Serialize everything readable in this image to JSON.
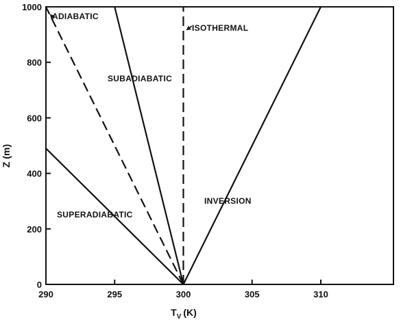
{
  "chart_data": {
    "type": "line",
    "xlabel": "T",
    "xlabel_sub": "V",
    "xlabel_unit": "(K)",
    "ylabel": "Z (m)",
    "xlim": [
      290,
      305
    ],
    "ylim": [
      0,
      1000
    ],
    "x_ticks": [
      290,
      295,
      300,
      305,
      310
    ],
    "y_ticks": [
      0,
      200,
      400,
      600,
      800,
      1000
    ],
    "grid": false,
    "series": [
      {
        "name": "ADIABATIC",
        "style": "dashed",
        "x": [
          300,
          290
        ],
        "y": [
          0,
          1000
        ]
      },
      {
        "name": "SUBADIABATIC",
        "style": "solid",
        "x": [
          300,
          295
        ],
        "y": [
          0,
          1000
        ]
      },
      {
        "name": "ISOTHERMAL",
        "style": "dashed",
        "x": [
          300,
          300
        ],
        "y": [
          0,
          1000
        ]
      },
      {
        "name": "SUPERADIABATIC",
        "style": "solid",
        "x": [
          300,
          290
        ],
        "y": [
          0,
          490
        ]
      },
      {
        "name": "INVERSION",
        "style": "solid",
        "x": [
          300,
          310
        ],
        "y": [
          0,
          1000
        ]
      }
    ],
    "annotations": [
      {
        "text": "ADIABATIC",
        "series": "ADIABATIC",
        "arrow": true
      },
      {
        "text": "ISOTHERMAL",
        "series": "ISOTHERMAL",
        "arrow": true
      },
      {
        "text": "SUBADIABATIC",
        "series": "SUBADIABATIC",
        "arrow": false
      },
      {
        "text": "SUPERADIABATIC",
        "series": "SUPERADIABATIC",
        "arrow": false
      },
      {
        "text": "INVERSION",
        "series": "INVERSION",
        "arrow": false
      }
    ],
    "colors": {
      "line": "#111111",
      "axis": "#111111",
      "background": "#ffffff"
    }
  }
}
